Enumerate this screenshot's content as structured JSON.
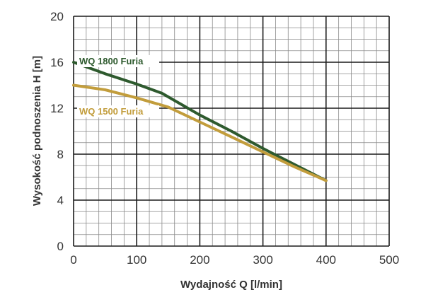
{
  "chart_data": {
    "type": "line",
    "xlabel": "Wydajność Q [l/min]",
    "ylabel": "Wysokość podnoszenia H [m]",
    "xlim": [
      0,
      500
    ],
    "ylim": [
      0,
      20
    ],
    "xticks": [
      0,
      100,
      200,
      300,
      400,
      500
    ],
    "yticks": [
      0,
      4,
      8,
      12,
      16,
      20
    ],
    "x_minor_step": 20,
    "y_minor_step": 1,
    "grid": true,
    "series": [
      {
        "name": "WQ 1800 Furia",
        "color": "#2e5a2e",
        "points": [
          [
            0,
            16
          ],
          [
            50,
            15
          ],
          [
            100,
            14.1
          ],
          [
            140,
            13.3
          ],
          [
            200,
            11.4
          ],
          [
            250,
            10
          ],
          [
            300,
            8.5
          ],
          [
            350,
            7.1
          ],
          [
            400,
            5.7
          ]
        ]
      },
      {
        "name": "WQ 1500 Furia",
        "color": "#c29d3c",
        "points": [
          [
            0,
            14
          ],
          [
            50,
            13.6
          ],
          [
            100,
            12.9
          ],
          [
            150,
            12.1
          ],
          [
            200,
            10.8
          ],
          [
            250,
            9.5
          ],
          [
            300,
            8.2
          ],
          [
            350,
            6.9
          ],
          [
            400,
            5.7
          ]
        ]
      }
    ]
  }
}
